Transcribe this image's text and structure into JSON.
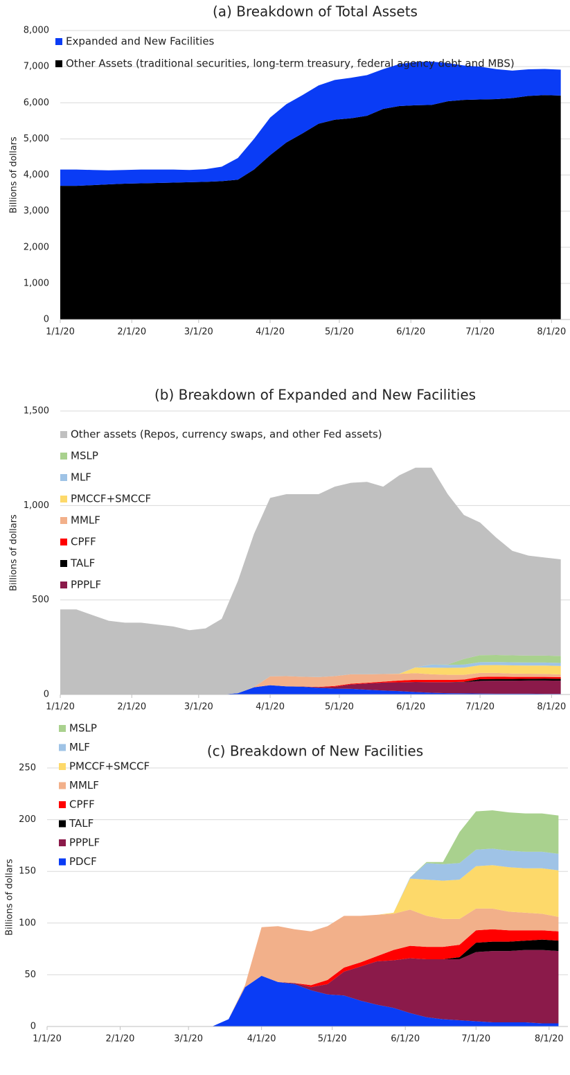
{
  "chart_data": [
    {
      "type": "stacked_area",
      "title": "(a) Breakdown of Total Assets",
      "y_label": "Billions of dollars",
      "x": [
        "1/1/20",
        "1/8/20",
        "1/15/20",
        "1/22/20",
        "1/29/20",
        "2/5/20",
        "2/12/20",
        "2/19/20",
        "2/26/20",
        "3/4/20",
        "3/11/20",
        "3/18/20",
        "3/25/20",
        "4/1/20",
        "4/8/20",
        "4/15/20",
        "4/22/20",
        "4/29/20",
        "5/6/20",
        "5/13/20",
        "5/20/20",
        "5/27/20",
        "6/3/20",
        "6/10/20",
        "6/17/20",
        "6/24/20",
        "7/1/20",
        "7/8/20",
        "7/15/20",
        "7/22/20",
        "7/29/20",
        "8/5/20"
      ],
      "xlim": [
        "1/1/20",
        "8/9/20"
      ],
      "xticks": [
        "1/1/20",
        "2/1/20",
        "3/1/20",
        "4/1/20",
        "5/1/20",
        "6/1/20",
        "7/1/20",
        "8/1/20"
      ],
      "ylim": [
        0,
        8000
      ],
      "yticks": [
        0,
        {
          "value": 1000,
          "label": "1,000"
        },
        {
          "value": 2000,
          "label": "2,000"
        },
        {
          "value": 3000,
          "label": "3,000"
        },
        {
          "value": 4000,
          "label": "4,000"
        },
        {
          "value": 5000,
          "label": "5,000"
        },
        {
          "value": 6000,
          "label": "6,000"
        },
        {
          "value": 7000,
          "label": "7,000"
        },
        {
          "value": 8000,
          "label": "8,000"
        }
      ],
      "grid": true,
      "series": [
        {
          "name": "Other Assets (traditional securities, long-term treasury, federal agency debt and MBS)",
          "color": "#000000",
          "values": [
            3700,
            3700,
            3720,
            3740,
            3760,
            3770,
            3780,
            3790,
            3800,
            3810,
            3830,
            3870,
            4150,
            4550,
            4900,
            5150,
            5420,
            5530,
            5570,
            5640,
            5830,
            5910,
            5930,
            5940,
            6040,
            6080,
            6090,
            6100,
            6130,
            6190,
            6210,
            6200
          ]
        },
        {
          "name": "Expanded and New Facilities",
          "color": "#0a3cf5",
          "values": [
            450,
            450,
            420,
            390,
            380,
            380,
            370,
            360,
            340,
            350,
            400,
            600,
            850,
            1040,
            1060,
            1060,
            1060,
            1100,
            1120,
            1125,
            1100,
            1160,
            1200,
            1200,
            1060,
            950,
            910,
            830,
            760,
            735,
            725,
            715
          ]
        }
      ]
    },
    {
      "type": "stacked_area",
      "title": "(b) Breakdown of Expanded and New Facilities",
      "y_label": "Billions of dollars",
      "x": [
        "1/1/20",
        "1/8/20",
        "1/15/20",
        "1/22/20",
        "1/29/20",
        "2/5/20",
        "2/12/20",
        "2/19/20",
        "2/26/20",
        "3/4/20",
        "3/11/20",
        "3/18/20",
        "3/25/20",
        "4/1/20",
        "4/8/20",
        "4/15/20",
        "4/22/20",
        "4/29/20",
        "5/6/20",
        "5/13/20",
        "5/20/20",
        "5/27/20",
        "6/3/20",
        "6/10/20",
        "6/17/20",
        "6/24/20",
        "7/1/20",
        "7/8/20",
        "7/15/20",
        "7/22/20",
        "7/29/20",
        "8/5/20"
      ],
      "xlim": [
        "1/1/20",
        "8/9/20"
      ],
      "xticks": [
        "1/1/20",
        "2/1/20",
        "3/1/20",
        "4/1/20",
        "5/1/20",
        "6/1/20",
        "7/1/20",
        "8/1/20"
      ],
      "ylim": [
        0,
        1500
      ],
      "yticks": [
        0,
        500,
        {
          "value": 1000,
          "label": "1,000"
        },
        {
          "value": 1500,
          "label": "1,500"
        }
      ],
      "grid": true,
      "series": [
        {
          "name": null,
          "color": "#0a3cf5",
          "values": [
            0,
            0,
            0,
            0,
            0,
            0,
            0,
            0,
            0,
            0,
            0,
            7,
            38,
            49,
            43,
            41,
            35,
            31,
            30,
            25,
            21,
            18,
            13,
            9,
            7,
            6,
            5,
            4,
            4,
            4,
            3,
            3
          ]
        },
        {
          "name": "PPPLF",
          "color": "#8b1a4a",
          "values": [
            0,
            0,
            0,
            0,
            0,
            0,
            0,
            0,
            0,
            0,
            0,
            0,
            0,
            0,
            0,
            1,
            3,
            10,
            23,
            33,
            42,
            46,
            53,
            56,
            58,
            59,
            67,
            69,
            69,
            70,
            71,
            70
          ]
        },
        {
          "name": "TALF",
          "color": "#000000",
          "values": [
            0,
            0,
            0,
            0,
            0,
            0,
            0,
            0,
            0,
            0,
            0,
            0,
            0,
            0,
            0,
            0,
            0,
            0,
            0,
            0,
            0,
            0,
            0,
            0,
            0,
            2,
            9,
            9,
            9,
            9,
            10,
            10
          ]
        },
        {
          "name": "CPFF",
          "color": "#ff0000",
          "values": [
            0,
            0,
            0,
            0,
            0,
            0,
            0,
            0,
            0,
            0,
            0,
            0,
            0,
            0,
            0,
            0,
            2,
            4,
            4,
            4,
            5,
            10,
            12,
            12,
            12,
            12,
            12,
            12,
            11,
            10,
            9,
            9
          ]
        },
        {
          "name": "MMLF",
          "color": "#f2b08a",
          "values": [
            0,
            0,
            0,
            0,
            0,
            0,
            0,
            0,
            0,
            0,
            0,
            0,
            2,
            47,
            54,
            52,
            52,
            52,
            50,
            45,
            40,
            35,
            35,
            30,
            27,
            25,
            21,
            20,
            18,
            17,
            16,
            14
          ]
        },
        {
          "name": "PMCCF+SMCCF",
          "color": "#fdd96a",
          "values": [
            0,
            0,
            0,
            0,
            0,
            0,
            0,
            0,
            0,
            0,
            0,
            0,
            0,
            0,
            0,
            0,
            0,
            0,
            0,
            0,
            0,
            1,
            30,
            35,
            37,
            38,
            41,
            42,
            43,
            43,
            44,
            45
          ]
        },
        {
          "name": "MLF",
          "color": "#9fc3e6",
          "values": [
            0,
            0,
            0,
            0,
            0,
            0,
            0,
            0,
            0,
            0,
            0,
            0,
            0,
            0,
            0,
            0,
            0,
            0,
            0,
            0,
            0,
            0,
            1,
            16,
            16,
            16,
            16,
            16,
            16,
            16,
            16,
            16
          ]
        },
        {
          "name": "MSLP",
          "color": "#a9d18e",
          "values": [
            0,
            0,
            0,
            0,
            0,
            0,
            0,
            0,
            0,
            0,
            0,
            0,
            0,
            0,
            0,
            0,
            0,
            0,
            0,
            0,
            0,
            0,
            0,
            1,
            2,
            30,
            37,
            37,
            37,
            37,
            37,
            37
          ]
        },
        {
          "name": "Other assets (Repos, currency swaps, and other Fed assets)",
          "color": "#c0c0c0",
          "values": [
            450,
            450,
            420,
            390,
            380,
            380,
            370,
            360,
            340,
            350,
            400,
            593,
            810,
            944,
            963,
            966,
            968,
            1003,
            1013,
            1018,
            992,
            1050,
            1056,
            1041,
            901,
            762,
            702,
            621,
            553,
            529,
            519,
            511
          ]
        }
      ]
    },
    {
      "type": "stacked_area",
      "title": "(c) Breakdown of New Facilities",
      "y_label": "Billions of dollars",
      "x": [
        "1/1/20",
        "1/8/20",
        "1/15/20",
        "1/22/20",
        "1/29/20",
        "2/5/20",
        "2/12/20",
        "2/19/20",
        "2/26/20",
        "3/4/20",
        "3/11/20",
        "3/18/20",
        "3/25/20",
        "4/1/20",
        "4/8/20",
        "4/15/20",
        "4/22/20",
        "4/29/20",
        "5/6/20",
        "5/13/20",
        "5/20/20",
        "5/27/20",
        "6/3/20",
        "6/10/20",
        "6/17/20",
        "6/24/20",
        "7/1/20",
        "7/8/20",
        "7/15/20",
        "7/22/20",
        "7/29/20",
        "8/5/20"
      ],
      "xlim": [
        "1/1/20",
        "8/9/20"
      ],
      "xticks": [
        "1/1/20",
        "2/1/20",
        "3/1/20",
        "4/1/20",
        "5/1/20",
        "6/1/20",
        "7/1/20",
        "8/1/20"
      ],
      "ylim": [
        0,
        250
      ],
      "yticks": [
        0,
        50,
        100,
        150,
        200,
        250
      ],
      "grid": true,
      "series": [
        {
          "name": "PDCF",
          "color": "#0a3cf5",
          "values": [
            0,
            0,
            0,
            0,
            0,
            0,
            0,
            0,
            0,
            0,
            0,
            7,
            38,
            49,
            43,
            41,
            35,
            31,
            30,
            25,
            21,
            18,
            13,
            9,
            7,
            6,
            5,
            4,
            4,
            4,
            3,
            3
          ]
        },
        {
          "name": "PPPLF",
          "color": "#8b1a4a",
          "values": [
            0,
            0,
            0,
            0,
            0,
            0,
            0,
            0,
            0,
            0,
            0,
            0,
            0,
            0,
            0,
            1,
            3,
            10,
            23,
            33,
            42,
            46,
            53,
            56,
            58,
            59,
            67,
            69,
            69,
            70,
            71,
            70
          ]
        },
        {
          "name": "TALF",
          "color": "#000000",
          "values": [
            0,
            0,
            0,
            0,
            0,
            0,
            0,
            0,
            0,
            0,
            0,
            0,
            0,
            0,
            0,
            0,
            0,
            0,
            0,
            0,
            0,
            0,
            0,
            0,
            0,
            2,
            9,
            9,
            9,
            9,
            10,
            10
          ]
        },
        {
          "name": "CPFF",
          "color": "#ff0000",
          "values": [
            0,
            0,
            0,
            0,
            0,
            0,
            0,
            0,
            0,
            0,
            0,
            0,
            0,
            0,
            0,
            0,
            2,
            4,
            4,
            4,
            5,
            10,
            12,
            12,
            12,
            12,
            12,
            12,
            11,
            10,
            9,
            9
          ]
        },
        {
          "name": "MMLF",
          "color": "#f2b08a",
          "values": [
            0,
            0,
            0,
            0,
            0,
            0,
            0,
            0,
            0,
            0,
            0,
            0,
            2,
            47,
            54,
            52,
            52,
            52,
            50,
            45,
            40,
            35,
            35,
            30,
            27,
            25,
            21,
            20,
            18,
            17,
            16,
            14
          ]
        },
        {
          "name": "PMCCF+SMCCF",
          "color": "#fdd96a",
          "values": [
            0,
            0,
            0,
            0,
            0,
            0,
            0,
            0,
            0,
            0,
            0,
            0,
            0,
            0,
            0,
            0,
            0,
            0,
            0,
            0,
            0,
            1,
            30,
            35,
            37,
            38,
            41,
            42,
            43,
            43,
            44,
            45
          ]
        },
        {
          "name": "MLF",
          "color": "#9fc3e6",
          "values": [
            0,
            0,
            0,
            0,
            0,
            0,
            0,
            0,
            0,
            0,
            0,
            0,
            0,
            0,
            0,
            0,
            0,
            0,
            0,
            0,
            0,
            0,
            1,
            16,
            16,
            16,
            16,
            16,
            16,
            16,
            16,
            16
          ]
        },
        {
          "name": "MSLP",
          "color": "#a9d18e",
          "values": [
            0,
            0,
            0,
            0,
            0,
            0,
            0,
            0,
            0,
            0,
            0,
            0,
            0,
            0,
            0,
            0,
            0,
            0,
            0,
            0,
            0,
            0,
            0,
            1,
            2,
            30,
            37,
            37,
            37,
            37,
            37,
            37
          ]
        }
      ]
    }
  ]
}
